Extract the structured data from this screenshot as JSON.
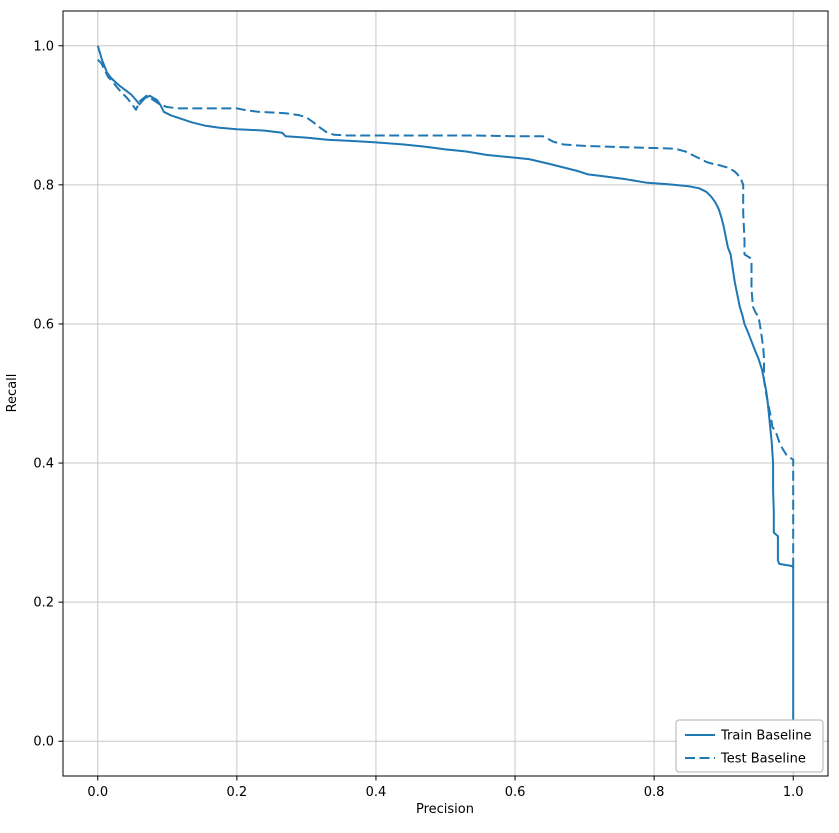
{
  "chart_data": {
    "type": "line",
    "title": "",
    "xlabel": "Precision",
    "ylabel": "Recall",
    "xlim": [
      -0.05,
      1.05
    ],
    "ylim": [
      -0.05,
      1.05
    ],
    "xticks": [
      0.0,
      0.2,
      0.4,
      0.6,
      0.8,
      1.0
    ],
    "yticks": [
      0.0,
      0.2,
      0.4,
      0.6,
      0.8,
      1.0
    ],
    "grid": true,
    "grid_color": "#c7c7c7",
    "line_color": "#1f77b4",
    "legend_position": "lower right",
    "series": [
      {
        "name": "Train Baseline",
        "style": "solid",
        "points": [
          [
            0.0,
            1.0
          ],
          [
            0.003,
            0.99
          ],
          [
            0.006,
            0.98
          ],
          [
            0.01,
            0.97
          ],
          [
            0.013,
            0.962
          ],
          [
            0.018,
            0.955
          ],
          [
            0.025,
            0.948
          ],
          [
            0.032,
            0.942
          ],
          [
            0.04,
            0.936
          ],
          [
            0.048,
            0.93
          ],
          [
            0.055,
            0.922
          ],
          [
            0.06,
            0.916
          ],
          [
            0.068,
            0.925
          ],
          [
            0.075,
            0.928
          ],
          [
            0.085,
            0.922
          ],
          [
            0.09,
            0.915
          ],
          [
            0.095,
            0.905
          ],
          [
            0.105,
            0.9
          ],
          [
            0.12,
            0.895
          ],
          [
            0.135,
            0.89
          ],
          [
            0.155,
            0.885
          ],
          [
            0.175,
            0.882
          ],
          [
            0.2,
            0.88
          ],
          [
            0.24,
            0.878
          ],
          [
            0.265,
            0.875
          ],
          [
            0.27,
            0.87
          ],
          [
            0.3,
            0.868
          ],
          [
            0.33,
            0.865
          ],
          [
            0.37,
            0.863
          ],
          [
            0.4,
            0.861
          ],
          [
            0.44,
            0.858
          ],
          [
            0.47,
            0.855
          ],
          [
            0.5,
            0.851
          ],
          [
            0.53,
            0.848
          ],
          [
            0.56,
            0.843
          ],
          [
            0.59,
            0.84
          ],
          [
            0.62,
            0.837
          ],
          [
            0.65,
            0.83
          ],
          [
            0.67,
            0.825
          ],
          [
            0.69,
            0.82
          ],
          [
            0.705,
            0.815
          ],
          [
            0.73,
            0.812
          ],
          [
            0.76,
            0.808
          ],
          [
            0.79,
            0.803
          ],
          [
            0.82,
            0.801
          ],
          [
            0.85,
            0.798
          ],
          [
            0.865,
            0.795
          ],
          [
            0.875,
            0.79
          ],
          [
            0.882,
            0.783
          ],
          [
            0.888,
            0.775
          ],
          [
            0.893,
            0.765
          ],
          [
            0.897,
            0.752
          ],
          [
            0.9,
            0.74
          ],
          [
            0.903,
            0.725
          ],
          [
            0.906,
            0.71
          ],
          [
            0.91,
            0.7
          ],
          [
            0.913,
            0.68
          ],
          [
            0.916,
            0.66
          ],
          [
            0.92,
            0.64
          ],
          [
            0.923,
            0.625
          ],
          [
            0.927,
            0.612
          ],
          [
            0.93,
            0.6
          ],
          [
            0.935,
            0.588
          ],
          [
            0.94,
            0.575
          ],
          [
            0.945,
            0.562
          ],
          [
            0.95,
            0.55
          ],
          [
            0.955,
            0.535
          ],
          [
            0.958,
            0.52
          ],
          [
            0.961,
            0.505
          ],
          [
            0.963,
            0.49
          ],
          [
            0.965,
            0.47
          ],
          [
            0.967,
            0.45
          ],
          [
            0.969,
            0.43
          ],
          [
            0.97,
            0.415
          ],
          [
            0.971,
            0.4
          ],
          [
            0.971,
            0.36
          ],
          [
            0.972,
            0.33
          ],
          [
            0.972,
            0.3
          ],
          [
            0.978,
            0.295
          ],
          [
            0.978,
            0.26
          ],
          [
            0.98,
            0.255
          ],
          [
            0.998,
            0.252
          ],
          [
            1.0,
            0.25
          ],
          [
            1.0,
            0.03
          ]
        ]
      },
      {
        "name": "Test Baseline",
        "style": "dashed",
        "points": [
          [
            0.0,
            0.98
          ],
          [
            0.005,
            0.975
          ],
          [
            0.01,
            0.965
          ],
          [
            0.015,
            0.955
          ],
          [
            0.02,
            0.95
          ],
          [
            0.028,
            0.94
          ],
          [
            0.035,
            0.932
          ],
          [
            0.042,
            0.925
          ],
          [
            0.05,
            0.915
          ],
          [
            0.055,
            0.908
          ],
          [
            0.06,
            0.92
          ],
          [
            0.07,
            0.928
          ],
          [
            0.08,
            0.922
          ],
          [
            0.09,
            0.915
          ],
          [
            0.1,
            0.912
          ],
          [
            0.115,
            0.91
          ],
          [
            0.15,
            0.91
          ],
          [
            0.2,
            0.91
          ],
          [
            0.21,
            0.908
          ],
          [
            0.23,
            0.905
          ],
          [
            0.27,
            0.903
          ],
          [
            0.29,
            0.9
          ],
          [
            0.3,
            0.897
          ],
          [
            0.31,
            0.89
          ],
          [
            0.32,
            0.882
          ],
          [
            0.33,
            0.875
          ],
          [
            0.34,
            0.872
          ],
          [
            0.36,
            0.871
          ],
          [
            0.42,
            0.871
          ],
          [
            0.48,
            0.871
          ],
          [
            0.54,
            0.871
          ],
          [
            0.6,
            0.87
          ],
          [
            0.64,
            0.87
          ],
          [
            0.655,
            0.862
          ],
          [
            0.67,
            0.858
          ],
          [
            0.7,
            0.856
          ],
          [
            0.73,
            0.855
          ],
          [
            0.76,
            0.854
          ],
          [
            0.8,
            0.853
          ],
          [
            0.83,
            0.852
          ],
          [
            0.845,
            0.848
          ],
          [
            0.855,
            0.843
          ],
          [
            0.865,
            0.838
          ],
          [
            0.875,
            0.833
          ],
          [
            0.885,
            0.83
          ],
          [
            0.895,
            0.828
          ],
          [
            0.905,
            0.825
          ],
          [
            0.915,
            0.82
          ],
          [
            0.92,
            0.815
          ],
          [
            0.925,
            0.808
          ],
          [
            0.928,
            0.8
          ],
          [
            0.928,
            0.76
          ],
          [
            0.93,
            0.72
          ],
          [
            0.93,
            0.7
          ],
          [
            0.938,
            0.695
          ],
          [
            0.94,
            0.69
          ],
          [
            0.94,
            0.65
          ],
          [
            0.942,
            0.625
          ],
          [
            0.945,
            0.618
          ],
          [
            0.95,
            0.61
          ],
          [
            0.952,
            0.6
          ],
          [
            0.955,
            0.58
          ],
          [
            0.957,
            0.565
          ],
          [
            0.958,
            0.55
          ],
          [
            0.958,
            0.52
          ],
          [
            0.96,
            0.505
          ],
          [
            0.962,
            0.495
          ],
          [
            0.965,
            0.48
          ],
          [
            0.968,
            0.465
          ],
          [
            0.97,
            0.452
          ],
          [
            0.975,
            0.445
          ],
          [
            0.98,
            0.43
          ],
          [
            0.985,
            0.42
          ],
          [
            0.99,
            0.412
          ],
          [
            0.995,
            0.408
          ],
          [
            1.0,
            0.405
          ],
          [
            1.0,
            0.25
          ]
        ]
      }
    ]
  }
}
